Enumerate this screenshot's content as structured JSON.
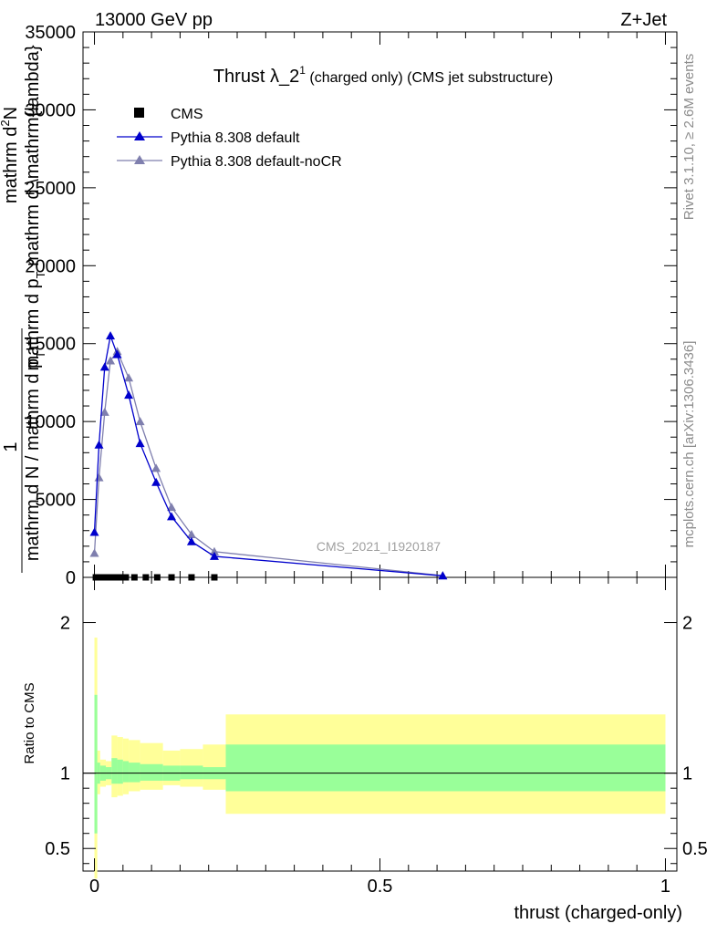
{
  "header": {
    "left": "13000 GeV pp",
    "right": "Z+Jet"
  },
  "side_text": {
    "rivet": "Rivet 3.1.10, ≥ 2.6M events",
    "mcplots": "mcplots.cern.ch [arXiv:1306.3436]"
  },
  "watermark": "CMS_2021_I1920187",
  "colors": {
    "pythia_default": "#0000cc",
    "pythia_nocr": "#7f7fae",
    "band_inner": "#99ff99",
    "band_outer": "#ffff99",
    "data": "#000000"
  },
  "chart_data": [
    {
      "type": "line",
      "title": "Thrust λ_2",
      "title_sup": "1",
      "title_rest": " (charged only) (CMS jet substructure)",
      "ylabel_numerator_top": "mathrm d",
      "ylabel_numerator_sup": "2",
      "ylabel_numerator_bottom": "N",
      "ylabel_denominator": "mathrm d p",
      "ylabel_denominator_sub": "T",
      "ylabel_denominator_rest": " mathrm d \\mathrm{lambda}",
      "ylabel_front_num": "1",
      "ylabel_front_den": "mathrm d N / mathrm d p",
      "ylabel_front_sub": "T",
      "xlim": [
        -0.02,
        1.02
      ],
      "ylim": [
        0,
        35000
      ],
      "y_ticks": [
        "0",
        "5000",
        "10000",
        "15000",
        "20000",
        "25000",
        "30000",
        "35000"
      ],
      "legend_position": "top-left",
      "series": [
        {
          "name": "CMS",
          "marker": "square",
          "x": [
            0.0025,
            0.0075,
            0.0125,
            0.0175,
            0.025,
            0.035,
            0.045,
            0.055,
            0.07,
            0.09,
            0.11,
            0.135,
            0.17,
            0.21
          ],
          "y": [
            0,
            0,
            0,
            0,
            0,
            0,
            0,
            0,
            0,
            0,
            0,
            0,
            0,
            0
          ]
        },
        {
          "name": "Pythia 8.308 default",
          "marker": "triangle",
          "x": [
            0.0,
            0.008,
            0.018,
            0.028,
            0.04,
            0.06,
            0.08,
            0.108,
            0.135,
            0.17,
            0.21,
            0.61
          ],
          "y": [
            2900,
            8500,
            13500,
            15500,
            14300,
            11700,
            8600,
            6100,
            3900,
            2300,
            1350,
            100
          ]
        },
        {
          "name": "Pythia 8.308 default-noCR",
          "marker": "triangle",
          "x": [
            0.0,
            0.008,
            0.018,
            0.028,
            0.04,
            0.06,
            0.08,
            0.108,
            0.135,
            0.17,
            0.21,
            0.61
          ],
          "y": [
            1550,
            6400,
            10600,
            13900,
            14500,
            12800,
            10000,
            7000,
            4500,
            2750,
            1650,
            110
          ]
        }
      ]
    },
    {
      "type": "area",
      "ylabel": "Ratio to CMS",
      "xlabel": "thrust (charged-only)",
      "xlim": [
        -0.02,
        1.02
      ],
      "ylim": [
        0.35,
        2.3
      ],
      "x_ticks": [
        "0",
        "0.5",
        "1"
      ],
      "y_ticks": [
        "0.5",
        "1",
        "2"
      ],
      "reference_line": 1,
      "bins": [
        {
          "x0": 0.0,
          "x1": 0.005,
          "inner_lo": 0.6,
          "inner_hi": 1.52,
          "outer_lo": 0.3,
          "outer_hi": 1.9
        },
        {
          "x0": 0.005,
          "x1": 0.01,
          "inner_lo": 0.93,
          "inner_hi": 1.07,
          "outer_lo": 0.86,
          "outer_hi": 1.15
        },
        {
          "x0": 0.01,
          "x1": 0.02,
          "inner_lo": 0.95,
          "inner_hi": 1.05,
          "outer_lo": 0.91,
          "outer_hi": 1.09
        },
        {
          "x0": 0.02,
          "x1": 0.03,
          "inner_lo": 0.96,
          "inner_hi": 1.04,
          "outer_lo": 0.92,
          "outer_hi": 1.08
        },
        {
          "x0": 0.03,
          "x1": 0.04,
          "inner_lo": 0.93,
          "inner_hi": 1.1,
          "outer_lo": 0.84,
          "outer_hi": 1.25
        },
        {
          "x0": 0.04,
          "x1": 0.05,
          "inner_lo": 0.93,
          "inner_hi": 1.09,
          "outer_lo": 0.85,
          "outer_hi": 1.24
        },
        {
          "x0": 0.05,
          "x1": 0.06,
          "inner_lo": 0.94,
          "inner_hi": 1.08,
          "outer_lo": 0.86,
          "outer_hi": 1.23
        },
        {
          "x0": 0.06,
          "x1": 0.08,
          "inner_lo": 0.94,
          "inner_hi": 1.07,
          "outer_lo": 0.88,
          "outer_hi": 1.22
        },
        {
          "x0": 0.08,
          "x1": 0.12,
          "inner_lo": 0.95,
          "inner_hi": 1.06,
          "outer_lo": 0.89,
          "outer_hi": 1.2
        },
        {
          "x0": 0.12,
          "x1": 0.15,
          "inner_lo": 0.95,
          "inner_hi": 1.05,
          "outer_lo": 0.92,
          "outer_hi": 1.15
        },
        {
          "x0": 0.15,
          "x1": 0.19,
          "inner_lo": 0.96,
          "inner_hi": 1.05,
          "outer_lo": 0.91,
          "outer_hi": 1.16
        },
        {
          "x0": 0.19,
          "x1": 0.23,
          "inner_lo": 0.96,
          "inner_hi": 1.04,
          "outer_lo": 0.89,
          "outer_hi": 1.19
        },
        {
          "x0": 0.23,
          "x1": 1.0,
          "inner_lo": 0.88,
          "inner_hi": 1.19,
          "outer_lo": 0.73,
          "outer_hi": 1.39
        }
      ]
    }
  ]
}
